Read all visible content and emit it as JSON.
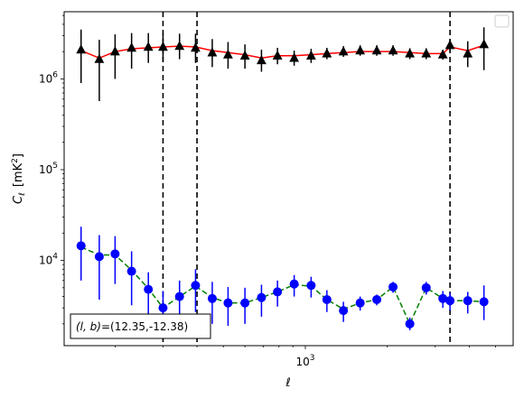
{
  "chart_data": {
    "type": "line",
    "title": "",
    "xlabel": "ℓ",
    "ylabel": "C",
    "ylabel_sub": "ℓ",
    "ylabel_unit": "[mK",
    "ylabel_unit_sup": "2",
    "ylabel_unit_close": "]",
    "xscale": "log",
    "yscale": "log",
    "xlim": [
      130,
      5800
    ],
    "ylim": [
      1150,
      5500000
    ],
    "x_ticks": [
      {
        "value": 1000,
        "base": "10",
        "exp": "3"
      }
    ],
    "y_ticks": [
      {
        "value": 10000,
        "base": "10",
        "exp": "4"
      },
      {
        "value": 100000,
        "base": "10",
        "exp": "5"
      },
      {
        "value": 1000000,
        "base": "10",
        "exp": "6"
      }
    ],
    "grid": false,
    "legend": {
      "placement": "top-right",
      "entries": []
    },
    "annotation": {
      "prefix": "(l, b)",
      "text": "=(12.35,-12.38)",
      "placement": "bottom-left"
    },
    "vlines": [
      300,
      400,
      3400
    ],
    "series": [
      {
        "marker": "triangle",
        "marker_color": "#000000",
        "errbar_color": "#000000",
        "x": [
          150,
          175,
          200,
          230,
          265,
          300,
          345,
          395,
          455,
          520,
          600,
          690,
          790,
          910,
          1050,
          1200,
          1380,
          1590,
          1830,
          2100,
          2420,
          2780,
          3200,
          3400,
          3950,
          4530
        ],
        "y": [
          2100000,
          1650000,
          2000000,
          2200000,
          2250000,
          2250000,
          2300000,
          2200000,
          1950000,
          1850000,
          1800000,
          1600000,
          1800000,
          1700000,
          1800000,
          1900000,
          2000000,
          2050000,
          2050000,
          2050000,
          1900000,
          1900000,
          1850000,
          2350000,
          1900000,
          2400000
        ],
        "yerr_lo": [
          1200000,
          1080000,
          1000000,
          900000,
          750000,
          700000,
          650000,
          700000,
          600000,
          550000,
          500000,
          400000,
          350000,
          300000,
          300000,
          250000,
          250000,
          250000,
          250000,
          250000,
          250000,
          250000,
          220000,
          300000,
          550000,
          1150000
        ],
        "yerr_hi": [
          1400000,
          1050000,
          1100000,
          1000000,
          950000,
          900000,
          850000,
          950000,
          800000,
          700000,
          600000,
          500000,
          400000,
          350000,
          350000,
          300000,
          300000,
          300000,
          300000,
          300000,
          280000,
          280000,
          250000,
          400000,
          700000,
          1300000
        ]
      },
      {
        "line_color": "#ff0000",
        "line_style": "solid",
        "x": [
          150,
          175,
          200,
          230,
          265,
          300,
          345,
          395,
          455,
          520,
          600,
          690,
          790,
          910,
          1050,
          1200,
          1380,
          1590,
          1830,
          2100,
          2420,
          2780,
          3200,
          3400,
          3950,
          4530
        ],
        "y": [
          2050000,
          1700000,
          2000000,
          2150000,
          2200000,
          2250000,
          2300000,
          2250000,
          2050000,
          1950000,
          1850000,
          1700000,
          1800000,
          1800000,
          1850000,
          1900000,
          1950000,
          2000000,
          2000000,
          2000000,
          1950000,
          1900000,
          1900000,
          2250000,
          2050000,
          2350000
        ]
      },
      {
        "marker": "circle",
        "marker_color": "#0000ff",
        "errbar_color": "#0000ff",
        "x": [
          150,
          175,
          200,
          230,
          265,
          300,
          345,
          395,
          455,
          520,
          600,
          690,
          790,
          910,
          1050,
          1200,
          1380,
          1590,
          1830,
          2100,
          2420,
          2780,
          3200,
          3400,
          3950,
          4530
        ],
        "y": [
          14500,
          11000,
          11800,
          7600,
          4800,
          3000,
          4000,
          5300,
          3800,
          3400,
          3400,
          3900,
          4500,
          5500,
          5300,
          3700,
          2800,
          3400,
          3700,
          5100,
          2000,
          5000,
          3800,
          3600,
          3600,
          3500
        ],
        "yerr_lo": [
          8500,
          7300,
          6300,
          4400,
          2900,
          1600,
          2000,
          2600,
          1800,
          1500,
          1400,
          1500,
          1400,
          1500,
          1400,
          1000,
          700,
          600,
          500,
          700,
          300,
          800,
          800,
          800,
          1000,
          1300
        ],
        "yerr_hi": [
          9000,
          8000,
          6700,
          5000,
          2600,
          1600,
          2000,
          2700,
          2000,
          1700,
          1600,
          1500,
          1500,
          1400,
          1300,
          1000,
          700,
          600,
          500,
          700,
          350,
          800,
          800,
          800,
          900,
          1800
        ]
      },
      {
        "line_color": "#008000",
        "line_style": "dashed",
        "x": [
          150,
          175,
          200,
          230,
          265,
          300,
          345,
          395,
          455,
          520,
          600,
          690,
          790,
          910,
          1050,
          1200,
          1380,
          1590,
          1830,
          2100,
          2420,
          2780,
          3200,
          3400,
          3950,
          4530
        ],
        "y": [
          14000,
          11500,
          11500,
          7800,
          4900,
          3000,
          4000,
          5200,
          3900,
          3400,
          3400,
          3900,
          4500,
          5400,
          5200,
          3700,
          2900,
          3400,
          3700,
          5100,
          2000,
          5000,
          3800,
          3600,
          3600,
          3500
        ]
      }
    ]
  }
}
